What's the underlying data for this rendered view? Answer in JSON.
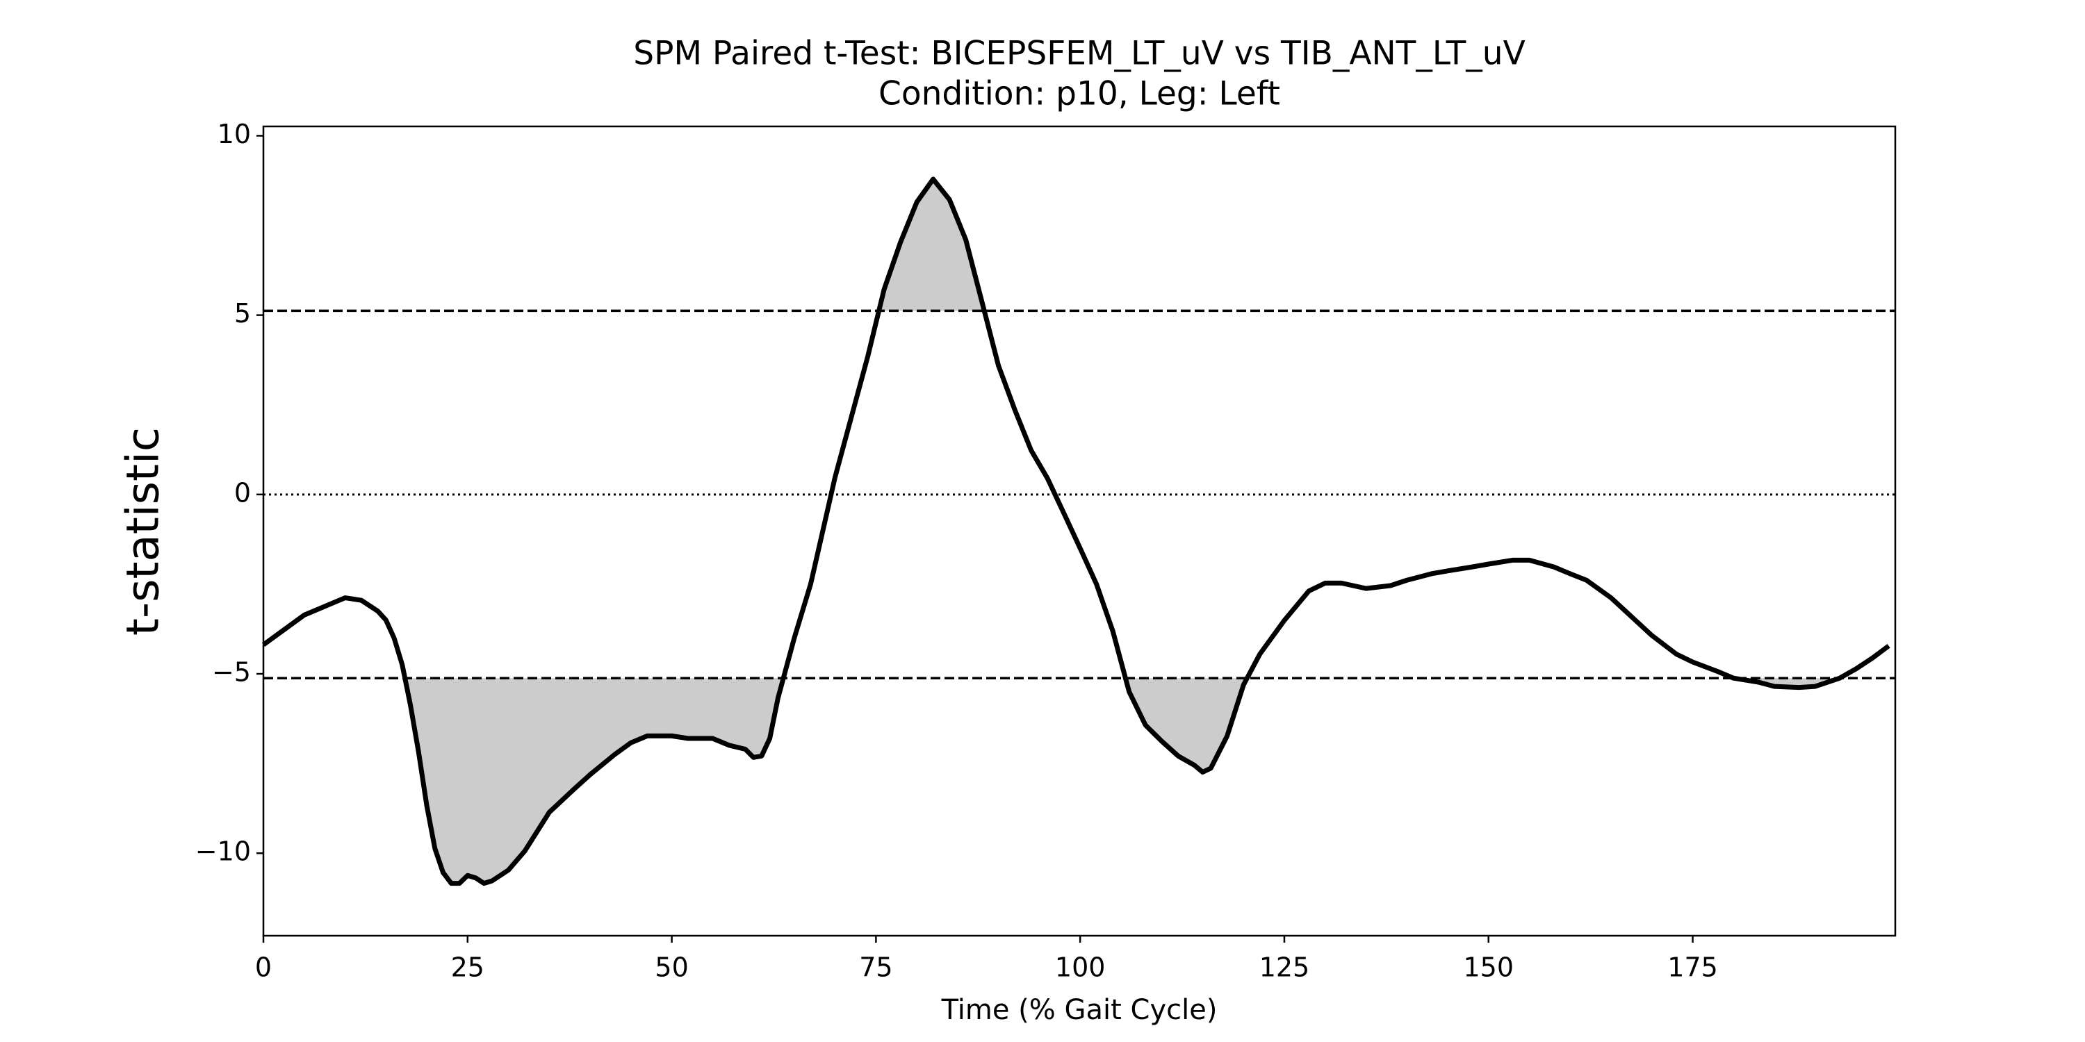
{
  "chart_data": {
    "type": "line",
    "title": "SPM Paired t-Test: BICEPSFEM_LT_uV vs TIB_ANT_LT_uV",
    "subtitle": "Condition: p10, Leg: Left",
    "x_label": "Time (% Gait Cycle)",
    "y_label": "t-statistic",
    "color": "#000000",
    "fill_color": "#cccccc",
    "x": [
      0,
      5,
      10,
      12,
      14,
      15,
      16,
      17,
      18,
      19,
      20,
      21,
      22,
      23,
      24,
      25,
      26,
      27,
      28,
      30,
      32,
      35,
      38,
      40,
      43,
      45,
      47,
      50,
      52,
      55,
      57,
      59,
      60,
      61,
      62,
      63,
      65,
      67,
      70,
      72,
      74,
      76,
      78,
      80,
      82,
      84,
      86,
      88,
      90,
      92,
      94,
      96,
      98,
      100,
      102,
      104,
      106,
      108,
      110,
      112,
      114,
      115,
      116,
      118,
      120,
      122,
      125,
      128,
      130,
      132,
      135,
      138,
      140,
      143,
      145,
      148,
      150,
      153,
      155,
      158,
      160,
      162,
      165,
      168,
      170,
      173,
      175,
      178,
      180,
      183,
      185,
      188,
      190,
      193,
      195,
      197,
      199
    ],
    "values": [
      -4.19,
      -3.36,
      -2.88,
      -2.95,
      -3.25,
      -3.5,
      -4.0,
      -4.75,
      -5.87,
      -7.18,
      -8.67,
      -9.87,
      -10.54,
      -10.84,
      -10.84,
      -10.62,
      -10.69,
      -10.84,
      -10.77,
      -10.47,
      -9.94,
      -8.86,
      -8.22,
      -7.81,
      -7.25,
      -6.92,
      -6.73,
      -6.73,
      -6.8,
      -6.8,
      -6.99,
      -7.1,
      -7.33,
      -7.29,
      -6.8,
      -5.68,
      -4.0,
      -2.5,
      0.49,
      2.17,
      3.85,
      5.72,
      7.03,
      8.15,
      8.79,
      8.22,
      7.1,
      5.35,
      3.59,
      2.36,
      1.23,
      0.45,
      -0.52,
      -1.5,
      -2.5,
      -3.81,
      -5.5,
      -6.43,
      -6.88,
      -7.29,
      -7.55,
      -7.74,
      -7.63,
      -6.73,
      -5.31,
      -4.45,
      -3.51,
      -2.69,
      -2.47,
      -2.47,
      -2.62,
      -2.54,
      -2.39,
      -2.21,
      -2.13,
      -2.02,
      -1.94,
      -1.83,
      -1.83,
      -2.02,
      -2.21,
      -2.39,
      -2.88,
      -3.51,
      -3.93,
      -4.45,
      -4.67,
      -4.93,
      -5.12,
      -5.23,
      -5.35,
      -5.38,
      -5.35,
      -5.12,
      -4.86,
      -4.56,
      -4.22
    ],
    "reference_lines": [
      {
        "value": 5.12,
        "style": "dashed"
      },
      {
        "value": -5.12,
        "style": "dashed"
      },
      {
        "value": 0,
        "style": "dotted"
      }
    ],
    "xlim": [
      0,
      199.8
    ],
    "ylim": [
      -12.3,
      10.26
    ],
    "xticks": [
      0,
      25,
      50,
      75,
      100,
      125,
      150,
      175
    ],
    "yticks": [
      {
        "value": -10,
        "label": "−10"
      },
      {
        "value": -5,
        "label": "−5"
      },
      0,
      5,
      10
    ]
  }
}
